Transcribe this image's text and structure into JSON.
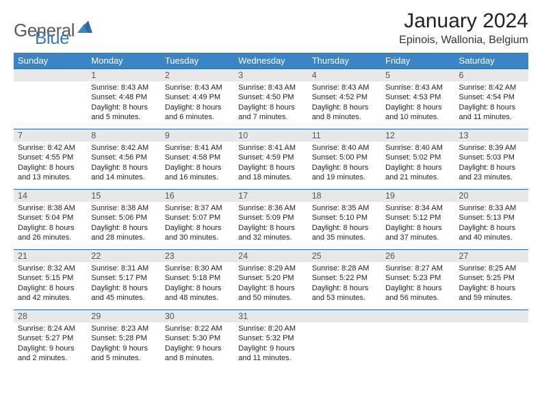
{
  "brand": {
    "part1": "General",
    "part2": "Blue"
  },
  "title": "January 2024",
  "location": "Epinois, Wallonia, Belgium",
  "colors": {
    "header_bg": "#3a85c6",
    "header_text": "#ffffff",
    "daynum_bg": "#e8e8e8",
    "row_divider": "#2e6da4",
    "brand_blue": "#3a7ab8",
    "brand_gray": "#5a5a5a"
  },
  "columns": [
    "Sunday",
    "Monday",
    "Tuesday",
    "Wednesday",
    "Thursday",
    "Friday",
    "Saturday"
  ],
  "weeks": [
    [
      {
        "n": "",
        "sr": "",
        "ss": "",
        "dl": ""
      },
      {
        "n": "1",
        "sr": "8:43 AM",
        "ss": "4:48 PM",
        "dl": "8 hours and 5 minutes."
      },
      {
        "n": "2",
        "sr": "8:43 AM",
        "ss": "4:49 PM",
        "dl": "8 hours and 6 minutes."
      },
      {
        "n": "3",
        "sr": "8:43 AM",
        "ss": "4:50 PM",
        "dl": "8 hours and 7 minutes."
      },
      {
        "n": "4",
        "sr": "8:43 AM",
        "ss": "4:52 PM",
        "dl": "8 hours and 8 minutes."
      },
      {
        "n": "5",
        "sr": "8:43 AM",
        "ss": "4:53 PM",
        "dl": "8 hours and 10 minutes."
      },
      {
        "n": "6",
        "sr": "8:42 AM",
        "ss": "4:54 PM",
        "dl": "8 hours and 11 minutes."
      }
    ],
    [
      {
        "n": "7",
        "sr": "8:42 AM",
        "ss": "4:55 PM",
        "dl": "8 hours and 13 minutes."
      },
      {
        "n": "8",
        "sr": "8:42 AM",
        "ss": "4:56 PM",
        "dl": "8 hours and 14 minutes."
      },
      {
        "n": "9",
        "sr": "8:41 AM",
        "ss": "4:58 PM",
        "dl": "8 hours and 16 minutes."
      },
      {
        "n": "10",
        "sr": "8:41 AM",
        "ss": "4:59 PM",
        "dl": "8 hours and 18 minutes."
      },
      {
        "n": "11",
        "sr": "8:40 AM",
        "ss": "5:00 PM",
        "dl": "8 hours and 19 minutes."
      },
      {
        "n": "12",
        "sr": "8:40 AM",
        "ss": "5:02 PM",
        "dl": "8 hours and 21 minutes."
      },
      {
        "n": "13",
        "sr": "8:39 AM",
        "ss": "5:03 PM",
        "dl": "8 hours and 23 minutes."
      }
    ],
    [
      {
        "n": "14",
        "sr": "8:38 AM",
        "ss": "5:04 PM",
        "dl": "8 hours and 26 minutes."
      },
      {
        "n": "15",
        "sr": "8:38 AM",
        "ss": "5:06 PM",
        "dl": "8 hours and 28 minutes."
      },
      {
        "n": "16",
        "sr": "8:37 AM",
        "ss": "5:07 PM",
        "dl": "8 hours and 30 minutes."
      },
      {
        "n": "17",
        "sr": "8:36 AM",
        "ss": "5:09 PM",
        "dl": "8 hours and 32 minutes."
      },
      {
        "n": "18",
        "sr": "8:35 AM",
        "ss": "5:10 PM",
        "dl": "8 hours and 35 minutes."
      },
      {
        "n": "19",
        "sr": "8:34 AM",
        "ss": "5:12 PM",
        "dl": "8 hours and 37 minutes."
      },
      {
        "n": "20",
        "sr": "8:33 AM",
        "ss": "5:13 PM",
        "dl": "8 hours and 40 minutes."
      }
    ],
    [
      {
        "n": "21",
        "sr": "8:32 AM",
        "ss": "5:15 PM",
        "dl": "8 hours and 42 minutes."
      },
      {
        "n": "22",
        "sr": "8:31 AM",
        "ss": "5:17 PM",
        "dl": "8 hours and 45 minutes."
      },
      {
        "n": "23",
        "sr": "8:30 AM",
        "ss": "5:18 PM",
        "dl": "8 hours and 48 minutes."
      },
      {
        "n": "24",
        "sr": "8:29 AM",
        "ss": "5:20 PM",
        "dl": "8 hours and 50 minutes."
      },
      {
        "n": "25",
        "sr": "8:28 AM",
        "ss": "5:22 PM",
        "dl": "8 hours and 53 minutes."
      },
      {
        "n": "26",
        "sr": "8:27 AM",
        "ss": "5:23 PM",
        "dl": "8 hours and 56 minutes."
      },
      {
        "n": "27",
        "sr": "8:25 AM",
        "ss": "5:25 PM",
        "dl": "8 hours and 59 minutes."
      }
    ],
    [
      {
        "n": "28",
        "sr": "8:24 AM",
        "ss": "5:27 PM",
        "dl": "9 hours and 2 minutes."
      },
      {
        "n": "29",
        "sr": "8:23 AM",
        "ss": "5:28 PM",
        "dl": "9 hours and 5 minutes."
      },
      {
        "n": "30",
        "sr": "8:22 AM",
        "ss": "5:30 PM",
        "dl": "9 hours and 8 minutes."
      },
      {
        "n": "31",
        "sr": "8:20 AM",
        "ss": "5:32 PM",
        "dl": "9 hours and 11 minutes."
      },
      {
        "n": "",
        "sr": "",
        "ss": "",
        "dl": ""
      },
      {
        "n": "",
        "sr": "",
        "ss": "",
        "dl": ""
      },
      {
        "n": "",
        "sr": "",
        "ss": "",
        "dl": ""
      }
    ]
  ],
  "labels": {
    "sunrise": "Sunrise:",
    "sunset": "Sunset:",
    "daylight": "Daylight:"
  }
}
